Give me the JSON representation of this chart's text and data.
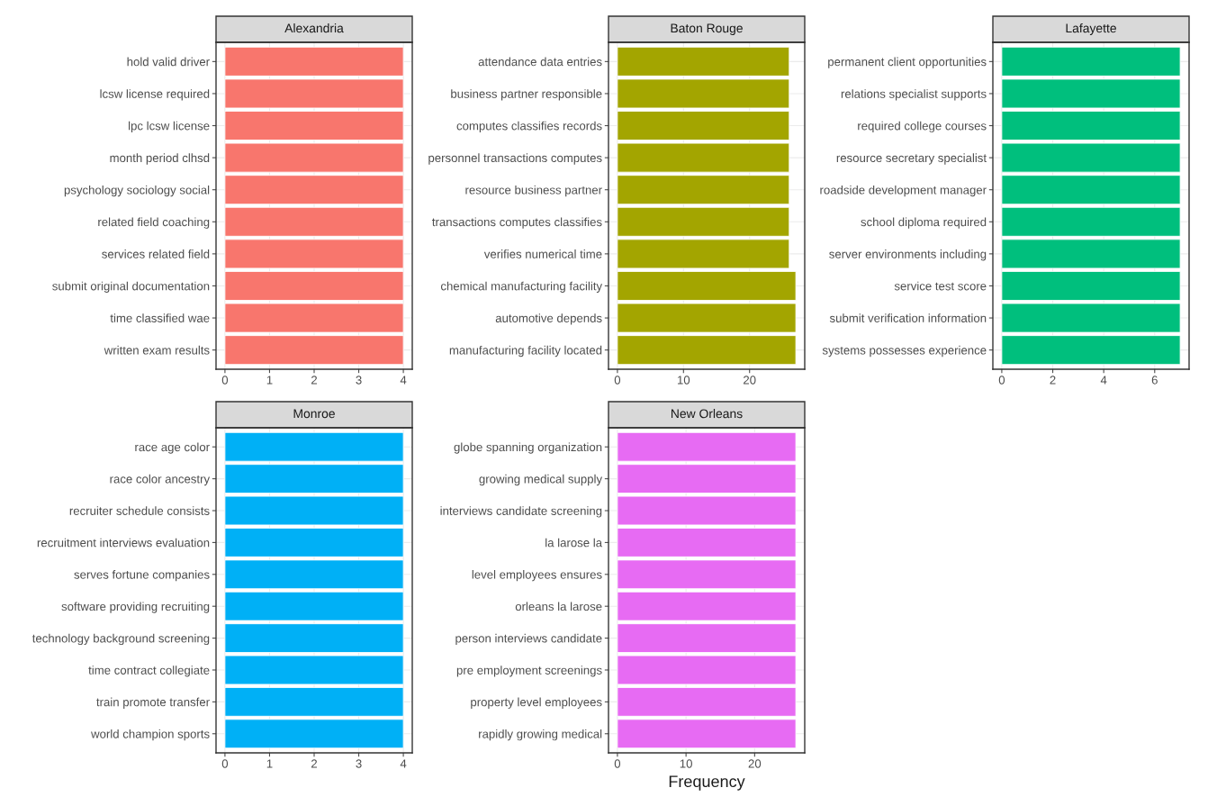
{
  "chart_data": [
    {
      "type": "bar",
      "orientation": "horizontal",
      "title": "Alexandria",
      "color": "#f8766d",
      "grid": true,
      "xlim": [
        -0.2,
        4.2
      ],
      "xticks": [
        0,
        1,
        2,
        3,
        4
      ],
      "categories": [
        "hold valid driver",
        "lcsw license required",
        "lpc lcsw license",
        "month period clhsd",
        "psychology sociology social",
        "related field coaching",
        "services related field",
        "submit original documentation",
        "time classified wae",
        "written exam results"
      ],
      "values": [
        4,
        4,
        4,
        4,
        4,
        4,
        4,
        4,
        4,
        4
      ]
    },
    {
      "type": "bar",
      "orientation": "horizontal",
      "title": "Baton Rouge",
      "color": "#a3a500",
      "grid": true,
      "xlim": [
        -1.35,
        28.35
      ],
      "xticks": [
        0,
        10,
        20
      ],
      "categories": [
        "attendance data entries",
        "business partner responsible",
        "computes classifies records",
        "personnel transactions computes",
        "resource business partner",
        "transactions computes classifies",
        "verifies numerical time",
        "chemical manufacturing facility",
        "automotive depends",
        "manufacturing facility located"
      ],
      "values": [
        26,
        26,
        26,
        26,
        26,
        26,
        26,
        27,
        27,
        27
      ]
    },
    {
      "type": "bar",
      "orientation": "horizontal",
      "title": "Lafayette",
      "color": "#00bf7d",
      "grid": true,
      "xlim": [
        -0.35,
        7.35
      ],
      "xticks": [
        0,
        2,
        4,
        6
      ],
      "categories": [
        "permanent client opportunities",
        "relations specialist supports",
        "required college courses",
        "resource secretary specialist",
        "roadside development manager",
        "school diploma required",
        "server environments including",
        "service test score",
        "submit verification information",
        "systems possesses experience"
      ],
      "values": [
        7,
        7,
        7,
        7,
        7,
        7,
        7,
        7,
        7,
        7
      ]
    },
    {
      "type": "bar",
      "orientation": "horizontal",
      "title": "Monroe",
      "color": "#00b0f6",
      "grid": true,
      "xlim": [
        -0.2,
        4.2
      ],
      "xticks": [
        0,
        1,
        2,
        3,
        4
      ],
      "categories": [
        "race age color",
        "race color ancestry",
        "recruiter schedule consists",
        "recruitment interviews evaluation",
        "serves fortune companies",
        "software providing recruiting",
        "technology background screening",
        "time contract collegiate",
        "train promote transfer",
        "world champion sports"
      ],
      "values": [
        4,
        4,
        4,
        4,
        4,
        4,
        4,
        4,
        4,
        4
      ]
    },
    {
      "type": "bar",
      "orientation": "horizontal",
      "title": "New Orleans",
      "color": "#e76bf3",
      "grid": true,
      "xlim": [
        -1.3,
        27.3
      ],
      "xticks": [
        0,
        10,
        20
      ],
      "xlabel": "Frequency",
      "categories": [
        "globe spanning organization",
        "growing medical supply",
        "interviews candidate screening",
        "la larose la",
        "level employees ensures",
        "orleans la larose",
        "person interviews candidate",
        "pre employment screenings",
        "property level employees",
        "rapidly growing medical"
      ],
      "values": [
        26,
        26,
        26,
        26,
        26,
        26,
        26,
        26,
        26,
        26
      ]
    }
  ]
}
